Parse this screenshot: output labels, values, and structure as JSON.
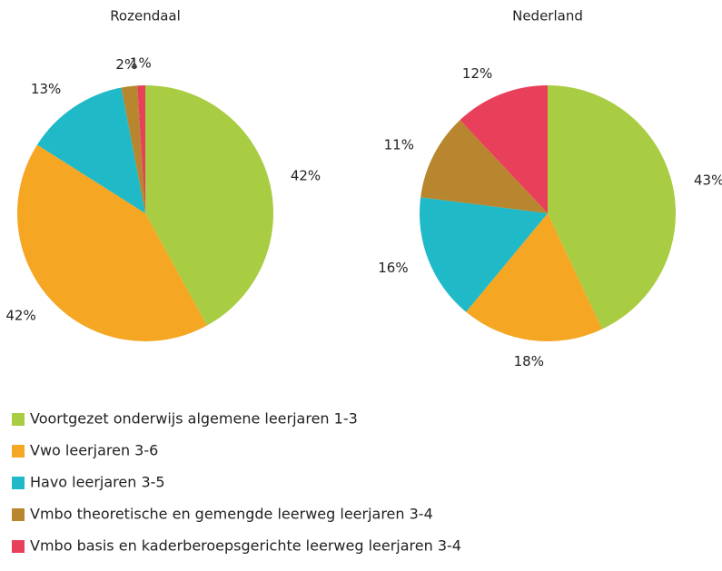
{
  "legend": {
    "items": [
      "Voortgezet onderwijs algemene leerjaren 1-3",
      "Vwo leerjaren 3-6",
      "Havo leerjaren 3-5",
      "Vmbo theoretische en gemengde leerweg leerjaren 3-4",
      "Vmbo basis en kaderberoepsgerichte leerweg leerjaren 3-4"
    ],
    "colors": [
      "#a8cc42",
      "#f5a623",
      "#1fb9c8",
      "#b8862e",
      "#e8405a"
    ]
  },
  "chart_data": [
    {
      "type": "pie",
      "title": "Rozendaal",
      "values": [
        42,
        42,
        13,
        2,
        1
      ],
      "value_labels": [
        "42%",
        "42%",
        "13%",
        "2%",
        "1%"
      ]
    },
    {
      "type": "pie",
      "title": "Nederland",
      "values": [
        43,
        18,
        16,
        11,
        12
      ],
      "value_labels": [
        "43%",
        "18%",
        "16%",
        "11%",
        "12%"
      ]
    }
  ]
}
